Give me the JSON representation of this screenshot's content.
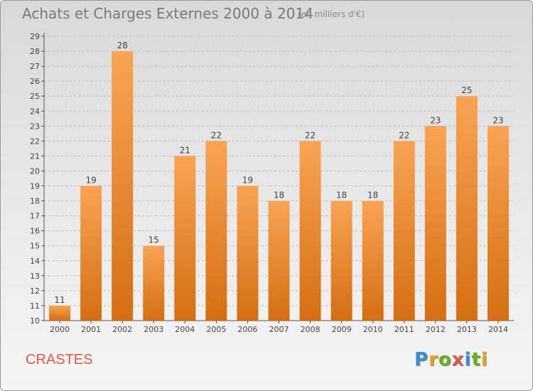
{
  "header": {
    "title": "Achats et Charges Externes 2000 à 2014",
    "unit": "(en milliers d'€)"
  },
  "footer": {
    "commune": "CRASTES",
    "logo": "Proxiti"
  },
  "colors": {
    "bar_top": "#f9a454",
    "bar_bottom": "#d46e12",
    "title": "#7a7a7a",
    "commune": "#e0584a",
    "grid": "#bfbfbf"
  },
  "chart_data": {
    "type": "bar",
    "title": "Achats et Charges Externes 2000 à 2014",
    "xlabel": "",
    "ylabel": "",
    "categories": [
      "2000",
      "2001",
      "2002",
      "2003",
      "2004",
      "2005",
      "2006",
      "2007",
      "2008",
      "2009",
      "2010",
      "2011",
      "2012",
      "2013",
      "2014"
    ],
    "values": [
      11,
      19,
      28,
      15,
      21,
      22,
      19,
      18,
      22,
      18,
      18,
      22,
      23,
      25,
      23
    ],
    "data_labels": [
      "11",
      "19",
      "28",
      "15",
      "21",
      "22",
      "19",
      "18",
      "22",
      "18",
      "18",
      "22",
      "23",
      "25",
      "23"
    ],
    "ylim": [
      10,
      29
    ],
    "yticks": [
      10,
      11,
      12,
      13,
      14,
      15,
      16,
      17,
      18,
      19,
      20,
      21,
      22,
      23,
      24,
      25,
      26,
      27,
      28,
      29
    ],
    "ytick_labels": [
      "10",
      "11",
      "12",
      "13",
      "14",
      "15",
      "16",
      "17",
      "18",
      "19",
      "20",
      "21",
      "22",
      "23",
      "24",
      "25",
      "26",
      "27",
      "28",
      "29"
    ],
    "grid": true,
    "legend": "none"
  }
}
